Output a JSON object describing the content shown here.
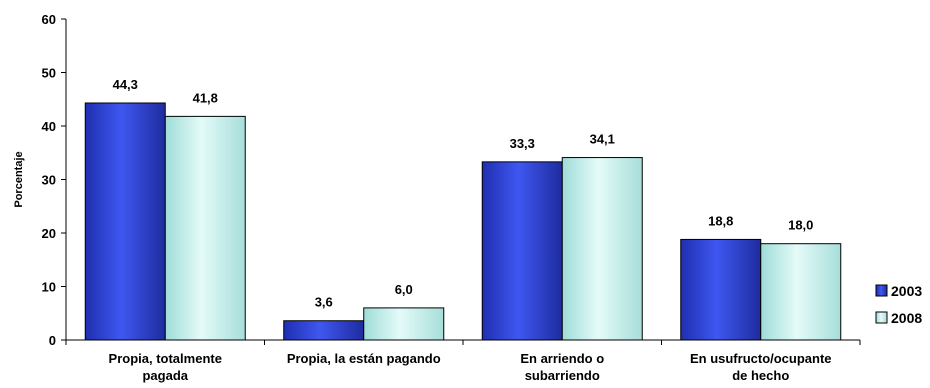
{
  "chart_data": {
    "type": "bar",
    "ylabel": "Porcentaje",
    "xlabel": "",
    "ylim": [
      0,
      60
    ],
    "yticks": [
      "0",
      "10",
      "20",
      "30",
      "40",
      "50",
      "60"
    ],
    "grid": false,
    "legend_position": "right",
    "categories": [
      [
        "Propia, totalmente",
        "pagada"
      ],
      [
        "Propia, la están pagando"
      ],
      [
        "En arriendo o",
        "subarriendo"
      ],
      [
        "En usufructo/ocupante",
        "de hecho"
      ]
    ],
    "series": [
      {
        "name": "2003",
        "color": "#2B3FD6",
        "values": [
          44.3,
          3.6,
          33.3,
          18.8
        ],
        "labels": [
          "44,3",
          "3,6",
          "33,3",
          "18,8"
        ]
      },
      {
        "name": "2008",
        "color": "#BDEEEA",
        "values": [
          41.8,
          6.0,
          34.1,
          18.0
        ],
        "labels": [
          "41,8",
          "6,0",
          "34,1",
          "18,0"
        ]
      }
    ]
  }
}
